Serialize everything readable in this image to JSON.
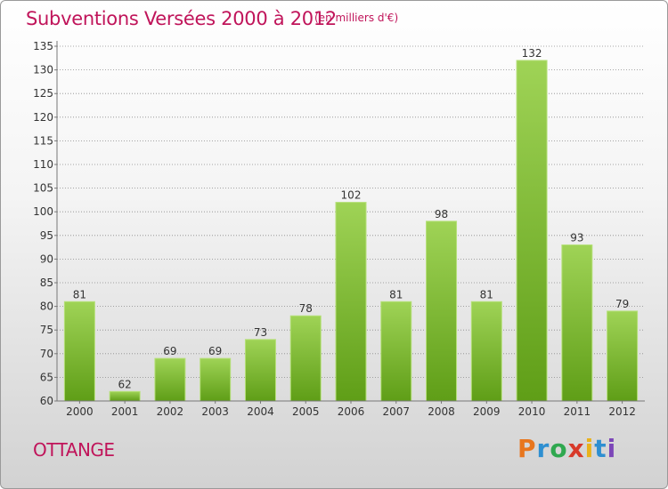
{
  "header": {
    "title": "Subventions Versées 2000 à 2012",
    "subtitle": "(en milliers d'€)"
  },
  "footer": {
    "commune": "OTTANGE",
    "logo_text": "Proxiti",
    "logo_colors": [
      "#e8761e",
      "#2e8fd1",
      "#2fa84f",
      "#d83a2a",
      "#e9b21c",
      "#2e8fd1",
      "#7c46b8"
    ]
  },
  "colors": {
    "title": "#c0145a",
    "bar_light": "#9fd356",
    "bar_dark": "#5f9e17",
    "bar_edge": "#b6e07a",
    "axis": "#777777",
    "grid": "#8a8a8a"
  },
  "chart_data": {
    "type": "bar",
    "categories": [
      "2000",
      "2001",
      "2002",
      "2003",
      "2004",
      "2005",
      "2006",
      "2007",
      "2008",
      "2009",
      "2010",
      "2011",
      "2012"
    ],
    "values": [
      81,
      62,
      69,
      69,
      73,
      78,
      102,
      81,
      98,
      81,
      132,
      93,
      79
    ],
    "data_labels": [
      "81",
      "62",
      "69",
      "69",
      "73",
      "78",
      "102",
      "81",
      "98",
      "81",
      "132",
      "93",
      "79"
    ],
    "ylim": [
      60,
      135
    ],
    "yticks": [
      60,
      65,
      70,
      75,
      80,
      85,
      90,
      95,
      100,
      105,
      110,
      115,
      120,
      125,
      130,
      135
    ],
    "ytick_labels": [
      "60",
      "65",
      "70",
      "75",
      "80",
      "85",
      "90",
      "95",
      "100",
      "105",
      "110",
      "115",
      "120",
      "125",
      "130",
      "135"
    ],
    "title": "Subventions Versées 2000 à 2012",
    "xlabel": "",
    "ylabel": "",
    "grid": true,
    "legend": "none"
  }
}
